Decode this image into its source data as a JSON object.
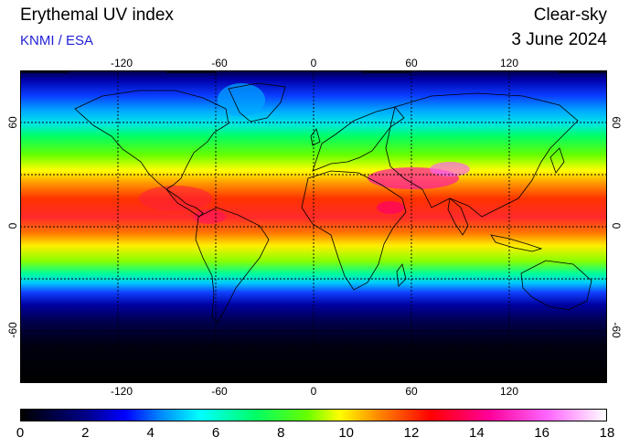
{
  "header": {
    "title": "Erythemal UV index",
    "source": "KNMI / ESA",
    "mode": "Clear-sky",
    "date": "3 June 2024"
  },
  "map": {
    "projection": "equirectangular",
    "lon_range": [
      -180,
      180
    ],
    "lat_range": [
      -90,
      90
    ],
    "gridlines": true,
    "grid_spacing_deg": 30,
    "lon_tick_labels": [
      "-120",
      "-60",
      "0",
      "60",
      "120"
    ],
    "lat_tick_labels": [
      "60",
      "0",
      "-60"
    ],
    "lon_ticks": [
      -120,
      -60,
      0,
      60,
      120
    ],
    "lat_ticks": [
      60,
      0,
      -60
    ]
  },
  "colorbar": {
    "min": 0,
    "max": 18,
    "labels": [
      "0",
      "2",
      "4",
      "6",
      "8",
      "10",
      "12",
      "14",
      "16",
      "18"
    ],
    "stops": [
      {
        "value": 0,
        "color": "#000000"
      },
      {
        "value": 2,
        "color": "#000088"
      },
      {
        "value": 3.2,
        "color": "#0000ff"
      },
      {
        "value": 4.3,
        "color": "#0088ff"
      },
      {
        "value": 5.5,
        "color": "#00ffff"
      },
      {
        "value": 7.2,
        "color": "#00ff66"
      },
      {
        "value": 8.8,
        "color": "#66ff00"
      },
      {
        "value": 9.8,
        "color": "#ffff00"
      },
      {
        "value": 11,
        "color": "#ff8800"
      },
      {
        "value": 12.6,
        "color": "#ff0000"
      },
      {
        "value": 14.4,
        "color": "#ff0099"
      },
      {
        "value": 16.2,
        "color": "#ff66ff"
      },
      {
        "value": 18,
        "color": "#ffffff"
      }
    ]
  }
}
